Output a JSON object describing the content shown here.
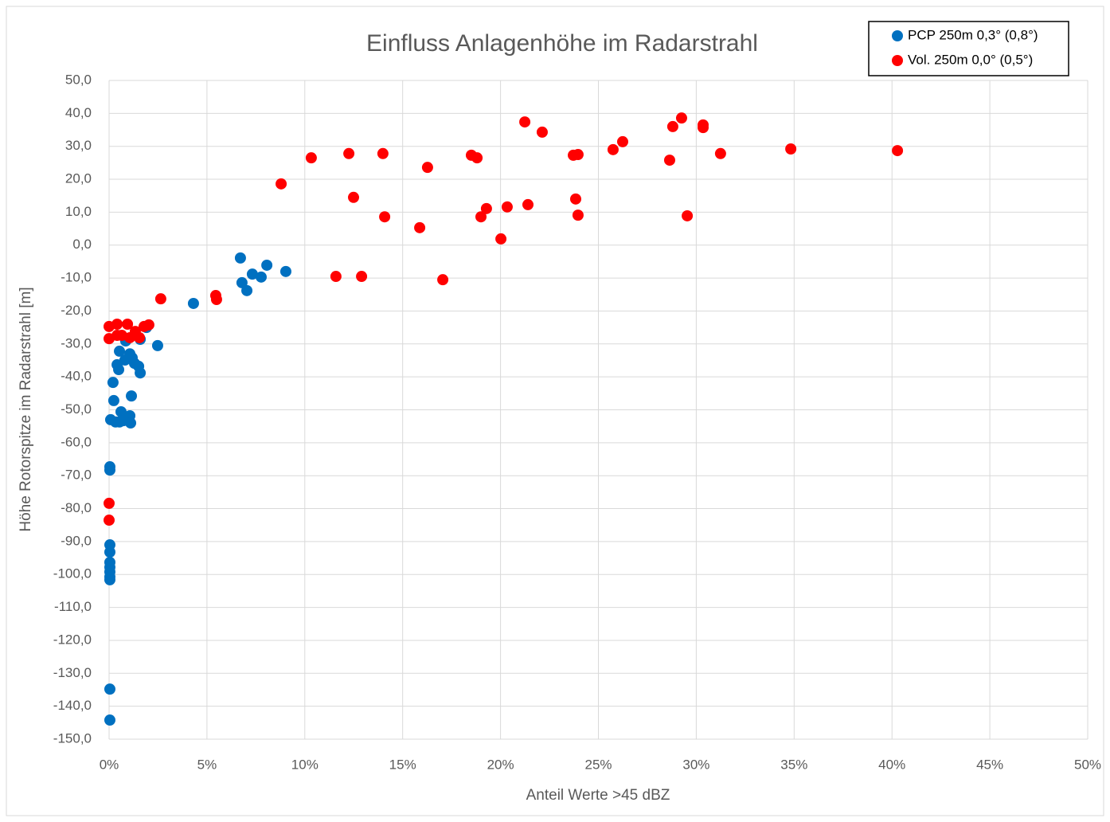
{
  "chart_data": {
    "type": "scatter",
    "title": "Einfluss Anlagenhöhe im Radarstrahl",
    "x_label": "Anteil Werte >45 dBZ",
    "y_label": "Höhe Rotorspitze im Radarstrahl [m]",
    "xlim": [
      0,
      50
    ],
    "ylim": [
      -150,
      50
    ],
    "grid": true,
    "legend": "top-right",
    "xticks": [
      {
        "value": 0,
        "label": "0%"
      },
      {
        "value": 5,
        "label": "5%"
      },
      {
        "value": 10,
        "label": "10%"
      },
      {
        "value": 15,
        "label": "15%"
      },
      {
        "value": 20,
        "label": "20%"
      },
      {
        "value": 25,
        "label": "25%"
      },
      {
        "value": 30,
        "label": "30%"
      },
      {
        "value": 35,
        "label": "35%"
      },
      {
        "value": 40,
        "label": "40%"
      },
      {
        "value": 45,
        "label": "45%"
      },
      {
        "value": 50,
        "label": "50%"
      }
    ],
    "yticks": [
      {
        "value": 50,
        "label": "50,0"
      },
      {
        "value": 40,
        "label": "40,0"
      },
      {
        "value": 30,
        "label": "30,0"
      },
      {
        "value": 20,
        "label": "20,0"
      },
      {
        "value": 10,
        "label": "10,0"
      },
      {
        "value": 0,
        "label": "0,0"
      },
      {
        "value": -10,
        "label": "-10,0"
      },
      {
        "value": -20,
        "label": "-20,0"
      },
      {
        "value": -30,
        "label": "-30,0"
      },
      {
        "value": -40,
        "label": "-40,0"
      },
      {
        "value": -50,
        "label": "-50,0"
      },
      {
        "value": -60,
        "label": "-60,0"
      },
      {
        "value": -70,
        "label": "-70,0"
      },
      {
        "value": -80,
        "label": "-80,0"
      },
      {
        "value": -90,
        "label": "-90,0"
      },
      {
        "value": -100,
        "label": "-100,0"
      },
      {
        "value": -110,
        "label": "-110,0"
      },
      {
        "value": -120,
        "label": "-120,0"
      },
      {
        "value": -130,
        "label": "-130,0"
      },
      {
        "value": -140,
        "label": "-140,0"
      },
      {
        "value": -150,
        "label": "-150,0"
      }
    ],
    "series": [
      {
        "name": "PCP 250m 0,3° (0,8°)",
        "color": "#0070c0",
        "x": [
          6.71,
          8.06,
          9.03,
          7.32,
          7.77,
          6.79,
          7.04,
          4.31,
          1.91,
          1.59,
          2.48,
          0.85,
          0.53,
          1.06,
          1.18,
          0.81,
          1.3,
          0.41,
          1.51,
          0.49,
          1.59,
          0.2,
          1.14,
          0.24,
          0.61,
          1.06,
          0.08,
          0.33,
          0.53,
          0.73,
          1.1,
          0.04,
          0.04,
          0.04,
          0.04,
          0.04,
          0.04,
          0.04,
          0.04,
          0.04,
          0.04,
          0.04
        ],
        "values": [
          -3.9,
          -6.1,
          -8.0,
          -8.8,
          -9.7,
          -11.4,
          -13.8,
          -17.7,
          -25.0,
          -28.6,
          -30.5,
          -29.1,
          -32.2,
          -33.0,
          -34.2,
          -34.9,
          -35.9,
          -36.3,
          -36.8,
          -37.8,
          -38.8,
          -41.7,
          -45.8,
          -47.2,
          -50.6,
          -51.8,
          -53.0,
          -53.7,
          -53.7,
          -53.3,
          -54.0,
          -67.3,
          -68.3,
          -91.0,
          -93.2,
          -96.3,
          -97.8,
          -99.2,
          -100.7,
          -101.6,
          -134.8,
          -144.2
        ]
      },
      {
        "name": "Vol. 250m 0,0° (0,5°)",
        "color": "#ff0000",
        "x": [
          0,
          0,
          0.41,
          0.65,
          0.94,
          0.41,
          1.06,
          1.34,
          1.55,
          1.79,
          2.03,
          2.64,
          5.45,
          5.49,
          8.79,
          10.33,
          12.25,
          12.49,
          13.99,
          14.08,
          11.59,
          12.9,
          16.27,
          15.87,
          17.05,
          18.51,
          18.8,
          19.0,
          19.28,
          20.02,
          20.34,
          21.24,
          21.4,
          22.13,
          23.72,
          23.96,
          23.84,
          23.96,
          25.75,
          26.24,
          28.64,
          28.8,
          29.25,
          29.54,
          30.35,
          30.35,
          31.24,
          34.83,
          40.28,
          0,
          0
        ],
        "values": [
          -24.7,
          -28.4,
          -24.0,
          -27.4,
          -24.0,
          -27.4,
          -28.1,
          -26.2,
          -28.1,
          -24.7,
          -24.2,
          -16.3,
          -15.3,
          -16.5,
          18.6,
          26.5,
          27.8,
          14.5,
          27.8,
          8.6,
          -9.5,
          -9.5,
          23.6,
          5.3,
          -10.5,
          27.3,
          26.5,
          8.6,
          11.1,
          1.9,
          11.6,
          37.4,
          12.3,
          34.3,
          27.3,
          27.5,
          14.0,
          9.1,
          29.0,
          31.4,
          25.8,
          36.0,
          38.6,
          8.9,
          36.5,
          35.7,
          27.8,
          29.2,
          28.7,
          -78.4,
          -83.5
        ]
      }
    ]
  }
}
